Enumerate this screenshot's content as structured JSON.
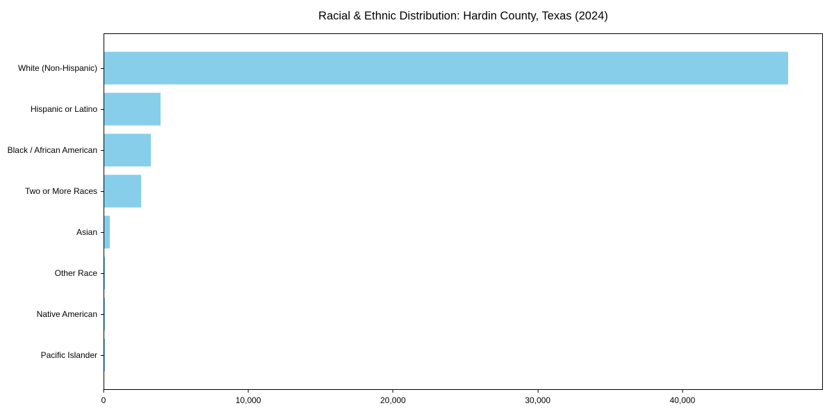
{
  "chart_data": {
    "type": "bar",
    "orientation": "horizontal",
    "title": "Racial & Ethnic Distribution: Hardin County, Texas (2024)",
    "categories": [
      "White (Non-Hispanic)",
      "Hispanic or Latino",
      "Black / African American",
      "Two or More Races",
      "Asian",
      "Other Race",
      "Native American",
      "Pacific Islander"
    ],
    "values": [
      47350,
      3900,
      3200,
      2550,
      390,
      60,
      35,
      15
    ],
    "xlabel": "",
    "ylabel": "",
    "xlim": [
      0,
      49700
    ],
    "xticks": [
      0,
      10000,
      20000,
      30000,
      40000
    ],
    "xtick_labels": [
      "0",
      "10,000",
      "20,000",
      "30,000",
      "40,000"
    ],
    "bar_color": "#87CEEB",
    "axis_color": "#000000",
    "background_color": "#ffffff",
    "grid": false,
    "legend": "none"
  }
}
